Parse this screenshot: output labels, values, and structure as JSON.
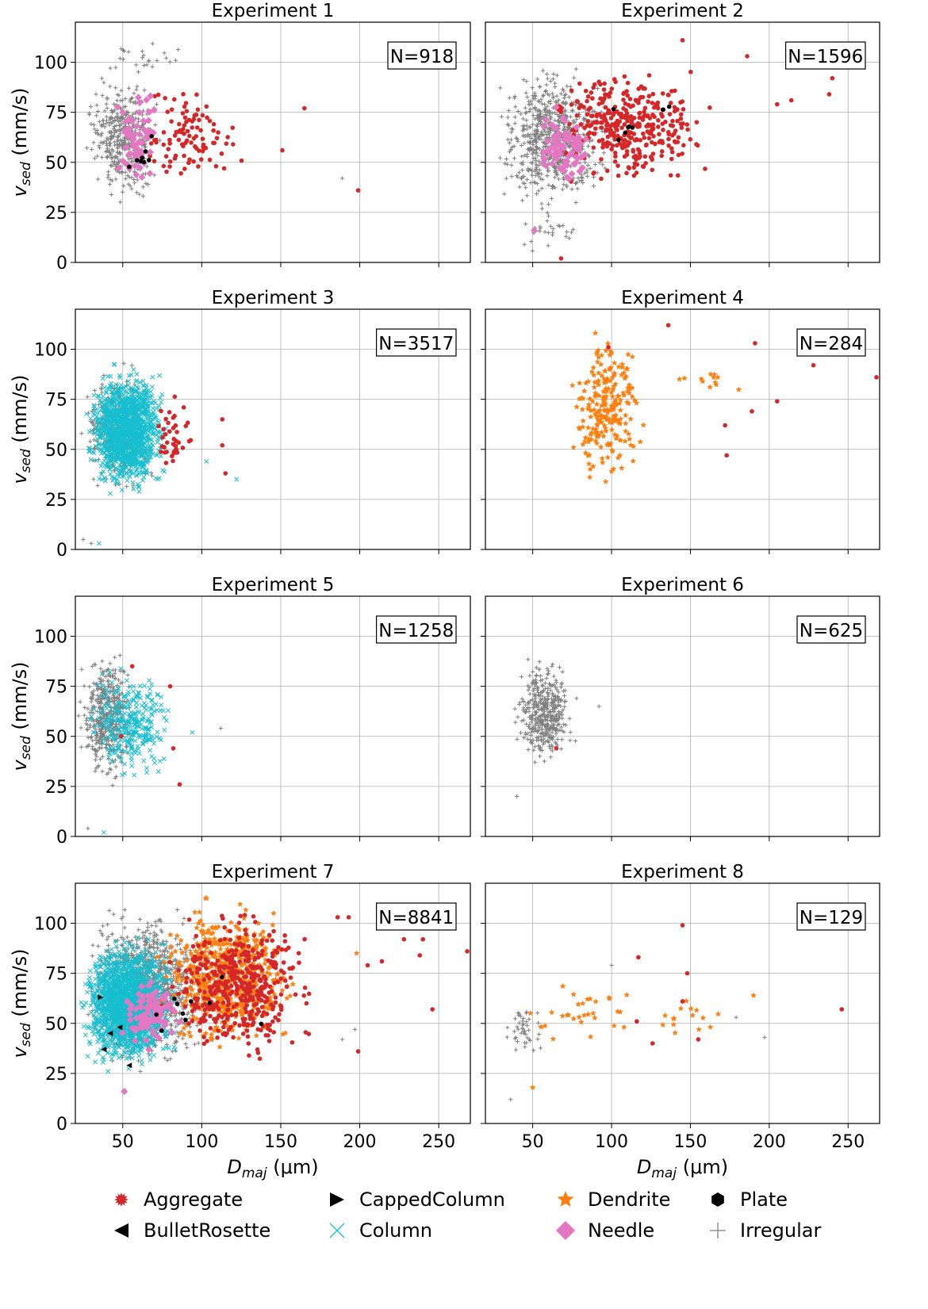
{
  "figure": {
    "xlabel_main": "D",
    "xlabel_sub": "maj",
    "xlabel_unit": " (μm)",
    "ylabel_main": "v",
    "ylabel_sub": "sed",
    "ylabel_unit": " (mm/s)"
  },
  "colors": {
    "Aggregate": "#d62728",
    "BulletRosette": "#000000",
    "CappedColumn": "#000000",
    "Column": "#17becf",
    "Dendrite": "#ff7f0e",
    "Needle": "#e377c2",
    "Plate": "#000000",
    "Irregular": "#7f7f7f"
  },
  "legend": {
    "placement": "bottom-center",
    "items": [
      {
        "name": "Aggregate",
        "marker": "star-burst"
      },
      {
        "name": "CappedColumn",
        "marker": "triangle-right"
      },
      {
        "name": "Dendrite",
        "marker": "star"
      },
      {
        "name": "Plate",
        "marker": "hexagon"
      },
      {
        "name": "BulletRosette",
        "marker": "triangle-left"
      },
      {
        "name": "Column",
        "marker": "x"
      },
      {
        "name": "Needle",
        "marker": "diamond"
      },
      {
        "name": "Irregular",
        "marker": "plus"
      }
    ]
  },
  "chart_data": [
    {
      "type": "scatter",
      "title": "Experiment 1",
      "annotation": "N=918",
      "xlim": [
        20,
        270
      ],
      "ylim": [
        0,
        120
      ],
      "xticks": [
        50,
        100,
        150,
        200,
        250
      ],
      "yticks": [
        0,
        25,
        50,
        75,
        100
      ],
      "grid": true,
      "clusters": [
        {
          "name": "Irregular",
          "n": 400,
          "cx": [
            25,
            75
          ],
          "cy": [
            30,
            95
          ]
        },
        {
          "name": "Irregular",
          "n": 25,
          "cx": [
            25,
            95
          ],
          "cy": [
            90,
            112
          ]
        },
        {
          "name": "Aggregate",
          "n": 100,
          "cx": [
            50,
            130
          ],
          "cy": [
            35,
            90
          ]
        },
        {
          "name": "Needle",
          "n": 60,
          "cx": [
            45,
            75
          ],
          "cy": [
            30,
            90
          ]
        },
        {
          "name": "Plate",
          "n": 8,
          "cx": [
            48,
            72
          ],
          "cy": [
            35,
            74
          ]
        }
      ],
      "points": [
        {
          "name": "Aggregate",
          "x": 165,
          "y": 77
        },
        {
          "name": "Aggregate",
          "x": 151,
          "y": 56
        },
        {
          "name": "Aggregate",
          "x": 199,
          "y": 36
        },
        {
          "name": "Irregular",
          "x": 189,
          "y": 42
        }
      ]
    },
    {
      "type": "scatter",
      "title": "Experiment 2",
      "annotation": "N=1596",
      "xlim": [
        20,
        270
      ],
      "ylim": [
        0,
        120
      ],
      "xticks": [
        50,
        100,
        150,
        200,
        250
      ],
      "yticks": [
        0,
        25,
        50,
        75,
        100
      ],
      "grid": true,
      "clusters": [
        {
          "name": "Irregular",
          "n": 700,
          "cx": [
            25,
            100
          ],
          "cy": [
            25,
            100
          ]
        },
        {
          "name": "Irregular",
          "n": 30,
          "cx": [
            40,
            80
          ],
          "cy": [
            2,
            35
          ]
        },
        {
          "name": "Aggregate",
          "n": 350,
          "cx": [
            55,
            170
          ],
          "cy": [
            35,
            100
          ]
        },
        {
          "name": "Needle",
          "n": 80,
          "cx": [
            50,
            90
          ],
          "cy": [
            35,
            80
          ]
        },
        {
          "name": "Plate",
          "n": 8,
          "cx": [
            70,
            150
          ],
          "cy": [
            45,
            86
          ]
        }
      ],
      "points": [
        {
          "name": "Aggregate",
          "x": 240,
          "y": 92
        },
        {
          "name": "Aggregate",
          "x": 238,
          "y": 84
        },
        {
          "name": "Aggregate",
          "x": 214,
          "y": 81
        },
        {
          "name": "Aggregate",
          "x": 205,
          "y": 79
        },
        {
          "name": "Aggregate",
          "x": 186,
          "y": 103
        },
        {
          "name": "Aggregate",
          "x": 145,
          "y": 111
        },
        {
          "name": "Aggregate",
          "x": 68,
          "y": 2
        },
        {
          "name": "Needle",
          "x": 51,
          "y": 16
        }
      ]
    },
    {
      "type": "scatter",
      "title": "Experiment 3",
      "annotation": "N=3517",
      "xlim": [
        20,
        270
      ],
      "ylim": [
        0,
        120
      ],
      "xticks": [
        50,
        100,
        150,
        200,
        250
      ],
      "yticks": [
        0,
        25,
        50,
        75,
        100
      ],
      "grid": true,
      "clusters": [
        {
          "name": "Irregular",
          "n": 300,
          "cx": [
            22,
            70
          ],
          "cy": [
            25,
            95
          ]
        },
        {
          "name": "Column",
          "n": 1400,
          "cx": [
            26,
            80
          ],
          "cy": [
            27,
            92
          ]
        },
        {
          "name": "Aggregate",
          "n": 40,
          "cx": [
            65,
            95
          ],
          "cy": [
            35,
            80
          ]
        }
      ],
      "points": [
        {
          "name": "Aggregate",
          "x": 113,
          "y": 65
        },
        {
          "name": "Aggregate",
          "x": 113,
          "y": 52
        },
        {
          "name": "Aggregate",
          "x": 115,
          "y": 38
        },
        {
          "name": "Column",
          "x": 122,
          "y": 35
        },
        {
          "name": "Column",
          "x": 103,
          "y": 44
        },
        {
          "name": "Irregular",
          "x": 25,
          "y": 5
        },
        {
          "name": "Irregular",
          "x": 30,
          "y": 3
        },
        {
          "name": "Column",
          "x": 35,
          "y": 3
        }
      ]
    },
    {
      "type": "scatter",
      "title": "Experiment 4",
      "annotation": "N=284",
      "xlim": [
        20,
        270
      ],
      "ylim": [
        0,
        120
      ],
      "xticks": [
        50,
        100,
        150,
        200,
        250
      ],
      "yticks": [
        0,
        25,
        50,
        75,
        100
      ],
      "grid": true,
      "clusters": [
        {
          "name": "Dendrite",
          "n": 230,
          "cx": [
            70,
            125
          ],
          "cy": [
            30,
            112
          ]
        },
        {
          "name": "Dendrite",
          "n": 12,
          "cx": [
            125,
            200
          ],
          "cy": [
            75,
            95
          ]
        }
      ],
      "points": [
        {
          "name": "Aggregate",
          "x": 268,
          "y": 86
        },
        {
          "name": "Aggregate",
          "x": 228,
          "y": 92
        },
        {
          "name": "Aggregate",
          "x": 205,
          "y": 74
        },
        {
          "name": "Aggregate",
          "x": 191,
          "y": 103
        },
        {
          "name": "Aggregate",
          "x": 189,
          "y": 69
        },
        {
          "name": "Aggregate",
          "x": 172,
          "y": 62
        },
        {
          "name": "Aggregate",
          "x": 173,
          "y": 47
        },
        {
          "name": "Aggregate",
          "x": 136,
          "y": 112
        },
        {
          "name": "Aggregate",
          "x": 98,
          "y": 101
        }
      ]
    },
    {
      "type": "scatter",
      "title": "Experiment 5",
      "annotation": "N=1258",
      "xlim": [
        20,
        270
      ],
      "ylim": [
        0,
        120
      ],
      "xticks": [
        50,
        100,
        150,
        200,
        250
      ],
      "yticks": [
        0,
        25,
        50,
        75,
        100
      ],
      "grid": true,
      "clusters": [
        {
          "name": "Irregular",
          "n": 450,
          "cx": [
            22,
            58
          ],
          "cy": [
            25,
            95
          ]
        },
        {
          "name": "Column",
          "n": 300,
          "cx": [
            25,
            85
          ],
          "cy": [
            25,
            90
          ]
        }
      ],
      "points": [
        {
          "name": "Aggregate",
          "x": 80,
          "y": 75
        },
        {
          "name": "Aggregate",
          "x": 82,
          "y": 44
        },
        {
          "name": "Aggregate",
          "x": 86,
          "y": 26
        },
        {
          "name": "Aggregate",
          "x": 56,
          "y": 85
        },
        {
          "name": "Aggregate",
          "x": 49,
          "y": 50
        },
        {
          "name": "Column",
          "x": 94,
          "y": 52
        },
        {
          "name": "Irregular",
          "x": 112,
          "y": 54
        },
        {
          "name": "Irregular",
          "x": 28,
          "y": 4
        },
        {
          "name": "Column",
          "x": 38,
          "y": 2
        }
      ]
    },
    {
      "type": "scatter",
      "title": "Experiment 6",
      "annotation": "N=625",
      "xlim": [
        20,
        270
      ],
      "ylim": [
        0,
        120
      ],
      "xticks": [
        50,
        100,
        150,
        200,
        250
      ],
      "yticks": [
        0,
        25,
        50,
        75,
        100
      ],
      "grid": true,
      "clusters": [
        {
          "name": "Irregular",
          "n": 420,
          "cx": [
            38,
            78
          ],
          "cy": [
            33,
            90
          ]
        }
      ],
      "points": [
        {
          "name": "Aggregate",
          "x": 65,
          "y": 44
        },
        {
          "name": "Irregular",
          "x": 40,
          "y": 20
        },
        {
          "name": "Irregular",
          "x": 92,
          "y": 65
        }
      ]
    },
    {
      "type": "scatter",
      "title": "Experiment 7",
      "annotation": "N=8841",
      "xlim": [
        20,
        270
      ],
      "ylim": [
        0,
        120
      ],
      "xticks": [
        50,
        100,
        150,
        200,
        250
      ],
      "yticks": [
        0,
        25,
        50,
        75,
        100
      ],
      "grid": true,
      "clusters": [
        {
          "name": "Irregular",
          "n": 1000,
          "cx": [
            22,
            110
          ],
          "cy": [
            25,
            110
          ]
        },
        {
          "name": "Column",
          "n": 1800,
          "cx": [
            22,
            85
          ],
          "cy": [
            25,
            95
          ]
        },
        {
          "name": "Dendrite",
          "n": 600,
          "cx": [
            70,
            165
          ],
          "cy": [
            35,
            112
          ]
        },
        {
          "name": "Aggregate",
          "n": 450,
          "cx": [
            70,
            175
          ],
          "cy": [
            30,
            110
          ]
        },
        {
          "name": "Needle",
          "n": 100,
          "cx": [
            45,
            90
          ],
          "cy": [
            35,
            75
          ]
        },
        {
          "name": "Plate",
          "n": 10,
          "cx": [
            50,
            150
          ],
          "cy": [
            35,
            86
          ]
        }
      ],
      "points": [
        {
          "name": "Aggregate",
          "x": 268,
          "y": 86
        },
        {
          "name": "Aggregate",
          "x": 240,
          "y": 92
        },
        {
          "name": "Aggregate",
          "x": 228,
          "y": 92
        },
        {
          "name": "Aggregate",
          "x": 238,
          "y": 84
        },
        {
          "name": "Aggregate",
          "x": 214,
          "y": 81
        },
        {
          "name": "Aggregate",
          "x": 205,
          "y": 79
        },
        {
          "name": "Aggregate",
          "x": 246,
          "y": 57
        },
        {
          "name": "Aggregate",
          "x": 199,
          "y": 36
        },
        {
          "name": "Aggregate",
          "x": 193,
          "y": 103
        },
        {
          "name": "Aggregate",
          "x": 186,
          "y": 103
        },
        {
          "name": "Irregular",
          "x": 189,
          "y": 42
        },
        {
          "name": "Irregular",
          "x": 197,
          "y": 47
        },
        {
          "name": "Dendrite",
          "x": 198,
          "y": 85
        },
        {
          "name": "Needle",
          "x": 51,
          "y": 16
        },
        {
          "name": "BulletRosette",
          "x": 38,
          "y": 37
        },
        {
          "name": "BulletRosette",
          "x": 42,
          "y": 45
        },
        {
          "name": "BulletRosette",
          "x": 54,
          "y": 29
        },
        {
          "name": "BulletRosette",
          "x": 48,
          "y": 48
        },
        {
          "name": "CappedColumn",
          "x": 36,
          "y": 63
        }
      ]
    },
    {
      "type": "scatter",
      "title": "Experiment 8",
      "annotation": "N=129",
      "xlim": [
        20,
        270
      ],
      "ylim": [
        0,
        120
      ],
      "xticks": [
        50,
        100,
        150,
        200,
        250
      ],
      "yticks": [
        0,
        25,
        50,
        75,
        100
      ],
      "grid": true,
      "clusters": [
        {
          "name": "Irregular",
          "n": 45,
          "cx": [
            28,
            62
          ],
          "cy": [
            33,
            60
          ]
        },
        {
          "name": "Dendrite",
          "n": 30,
          "cx": [
            35,
            130
          ],
          "cy": [
            40,
            70
          ]
        },
        {
          "name": "Dendrite",
          "n": 15,
          "cx": [
            120,
            190
          ],
          "cy": [
            40,
            65
          ]
        }
      ],
      "points": [
        {
          "name": "Aggregate",
          "x": 145,
          "y": 99
        },
        {
          "name": "Aggregate",
          "x": 117,
          "y": 83
        },
        {
          "name": "Aggregate",
          "x": 148,
          "y": 75
        },
        {
          "name": "Aggregate",
          "x": 116,
          "y": 51
        },
        {
          "name": "Aggregate",
          "x": 145,
          "y": 61
        },
        {
          "name": "Aggregate",
          "x": 246,
          "y": 57
        },
        {
          "name": "Aggregate",
          "x": 155,
          "y": 42
        },
        {
          "name": "Aggregate",
          "x": 126,
          "y": 40
        },
        {
          "name": "Irregular",
          "x": 36,
          "y": 12
        },
        {
          "name": "Irregular",
          "x": 100,
          "y": 79
        },
        {
          "name": "Irregular",
          "x": 197,
          "y": 43
        },
        {
          "name": "Irregular",
          "x": 179,
          "y": 53
        },
        {
          "name": "Dendrite",
          "x": 50,
          "y": 18
        },
        {
          "name": "Dendrite",
          "x": 190,
          "y": 64
        }
      ]
    }
  ]
}
